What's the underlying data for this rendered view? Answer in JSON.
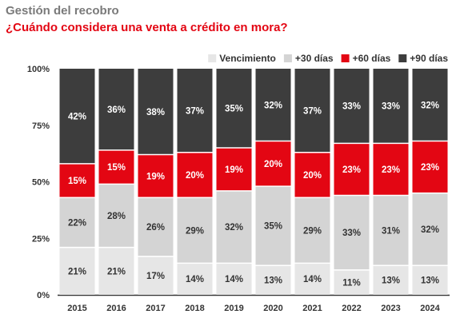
{
  "header": {
    "title": "Gestión del recobro",
    "subtitle": "¿Cuándo considera una venta a crédito en mora?"
  },
  "colors": {
    "subtitle": "#e30613",
    "vencimiento": "#e6e6e6",
    "mas30": "#d4d4d4",
    "mas60": "#e30613",
    "mas90": "#3d3d3d"
  },
  "chart_data": {
    "type": "bar",
    "stacked": true,
    "categories": [
      "2015",
      "2016",
      "2017",
      "2018",
      "2019",
      "2020",
      "2021",
      "2022",
      "2023",
      "2024"
    ],
    "series": [
      {
        "name": "Vencimiento",
        "color": "#e6e6e6",
        "label_color": "#333333",
        "values": [
          21,
          21,
          17,
          14,
          14,
          13,
          14,
          11,
          13,
          13
        ]
      },
      {
        "name": "+30 días",
        "color": "#d4d4d4",
        "label_color": "#333333",
        "values": [
          22,
          28,
          26,
          29,
          32,
          35,
          29,
          33,
          31,
          32
        ]
      },
      {
        "name": "+60 días",
        "color": "#e30613",
        "label_color": "#ffffff",
        "values": [
          15,
          15,
          19,
          20,
          19,
          20,
          20,
          23,
          23,
          23
        ]
      },
      {
        "name": "+90 días",
        "color": "#3d3d3d",
        "label_color": "#ffffff",
        "values": [
          42,
          36,
          38,
          37,
          35,
          32,
          37,
          33,
          33,
          32
        ]
      }
    ],
    "ylim": [
      0,
      100
    ],
    "yticks": [
      0,
      25,
      50,
      75,
      100
    ],
    "ytick_labels": [
      "0%",
      "25%",
      "50%",
      "75%",
      "100%"
    ],
    "value_suffix": "%",
    "legend_position": "top-right",
    "grid": false
  }
}
